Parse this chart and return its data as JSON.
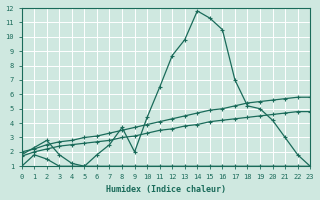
{
  "xlabel": "Humidex (Indice chaleur)",
  "background_color": "#cfe8e0",
  "grid_color": "#b8d8d0",
  "line_color": "#1a6b5a",
  "xlim": [
    0,
    23
  ],
  "ylim": [
    1,
    12
  ],
  "xticks": [
    0,
    1,
    2,
    3,
    4,
    5,
    6,
    7,
    8,
    9,
    10,
    11,
    12,
    13,
    14,
    15,
    16,
    17,
    18,
    19,
    20,
    21,
    22,
    23
  ],
  "yticks": [
    1,
    2,
    3,
    4,
    5,
    6,
    7,
    8,
    9,
    10,
    11,
    12
  ],
  "curves": [
    {
      "x": [
        0,
        1,
        2,
        3,
        4,
        5,
        6,
        7,
        8,
        9,
        10,
        11,
        12,
        13,
        14,
        15,
        16,
        17,
        18,
        19,
        20,
        21,
        22,
        23
      ],
      "y": [
        1,
        1.8,
        1.5,
        1.0,
        1.0,
        1.0,
        1.0,
        1.0,
        1.0,
        1.0,
        1.0,
        1.0,
        1.0,
        1.0,
        1.0,
        1.0,
        1.0,
        1.0,
        1.0,
        1.0,
        1.0,
        1.0,
        1.0,
        1.0
      ]
    },
    {
      "x": [
        0,
        1,
        2,
        3,
        4,
        5,
        6,
        7,
        8,
        9,
        10,
        11,
        12,
        13,
        14,
        15,
        16,
        17,
        18,
        19,
        20,
        21,
        22,
        23
      ],
      "y": [
        1.7,
        2.0,
        2.2,
        2.4,
        2.5,
        2.6,
        2.7,
        2.8,
        3.0,
        3.1,
        3.3,
        3.5,
        3.6,
        3.8,
        3.9,
        4.1,
        4.2,
        4.3,
        4.4,
        4.5,
        4.6,
        4.7,
        4.8,
        4.8
      ]
    },
    {
      "x": [
        0,
        1,
        2,
        3,
        4,
        5,
        6,
        7,
        8,
        9,
        10,
        11,
        12,
        13,
        14,
        15,
        16,
        17,
        18,
        19,
        20,
        21,
        22,
        23
      ],
      "y": [
        2.0,
        2.2,
        2.5,
        2.7,
        2.8,
        3.0,
        3.1,
        3.3,
        3.5,
        3.7,
        3.9,
        4.1,
        4.3,
        4.5,
        4.7,
        4.9,
        5.0,
        5.2,
        5.4,
        5.5,
        5.6,
        5.7,
        5.8,
        5.8
      ]
    },
    {
      "x": [
        0,
        1,
        2,
        3,
        4,
        5,
        6,
        7,
        8,
        9,
        10,
        11,
        12,
        13,
        14,
        15,
        16,
        17,
        18,
        19,
        20,
        21,
        22,
        23
      ],
      "y": [
        1.8,
        2.3,
        2.8,
        1.8,
        1.2,
        1.0,
        1.8,
        2.5,
        3.7,
        2.0,
        4.4,
        6.5,
        8.7,
        9.8,
        11.8,
        11.3,
        10.5,
        7.0,
        5.2,
        5.0,
        4.2,
        3.0,
        1.8,
        1.0
      ]
    }
  ]
}
